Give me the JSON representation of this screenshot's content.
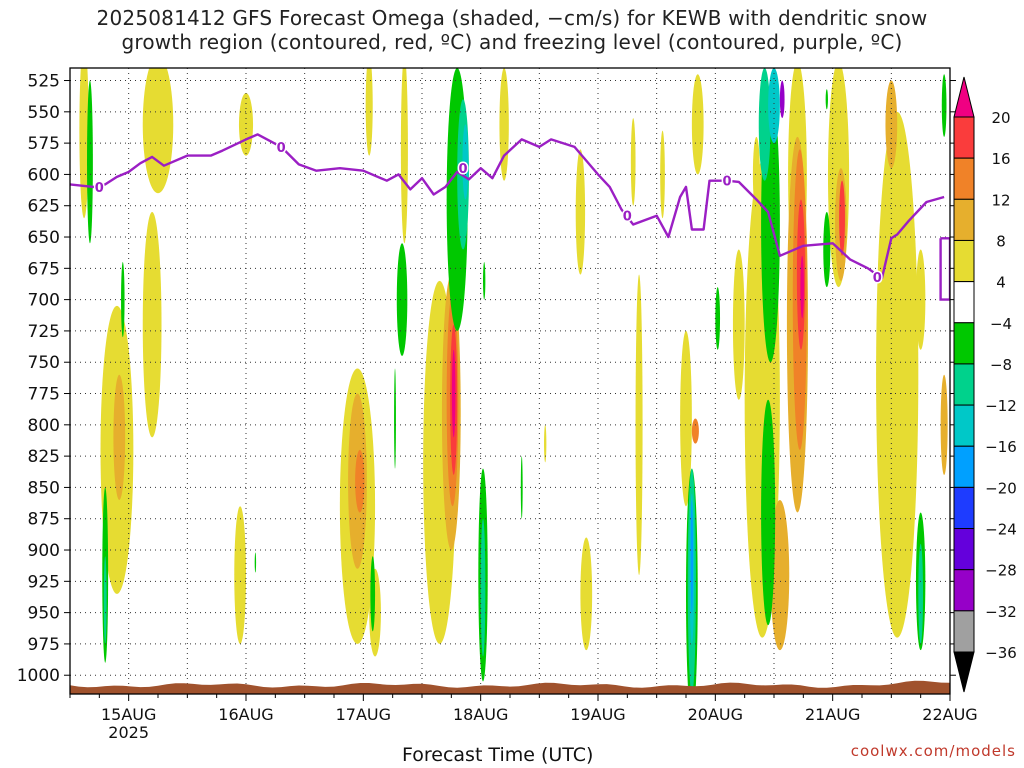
{
  "title": {
    "line1": "2025081412 GFS Forecast Omega (shaded, −cm/s) for KEWB with dendritic snow",
    "line2": "growth region (contoured, red, ºC) and freezing level (contoured, purple, ºC)"
  },
  "credit": "coolwx.com/models",
  "chart_data": {
    "type": "heatmap",
    "xlabel": "Forecast Time (UTC)",
    "ylabel": "",
    "x_ticks": [
      {
        "day": 15,
        "label": "15AUG",
        "sub": "2025"
      },
      {
        "day": 16,
        "label": "16AUG",
        "sub": ""
      },
      {
        "day": 17,
        "label": "17AUG",
        "sub": ""
      },
      {
        "day": 18,
        "label": "18AUG",
        "sub": ""
      },
      {
        "day": 19,
        "label": "19AUG",
        "sub": ""
      },
      {
        "day": 20,
        "label": "20AUG",
        "sub": ""
      },
      {
        "day": 21,
        "label": "21AUG",
        "sub": ""
      },
      {
        "day": 22,
        "label": "22AUG",
        "sub": ""
      }
    ],
    "xlim": [
      14.5,
      22.0
    ],
    "y_ticks": [
      525,
      550,
      575,
      600,
      625,
      650,
      675,
      700,
      725,
      750,
      775,
      800,
      825,
      850,
      875,
      900,
      925,
      950,
      975,
      1000
    ],
    "ylim": [
      515,
      1015
    ],
    "grid": true,
    "ground_level_hpa": 1008,
    "colorbar": {
      "levels": [
        -36,
        -32,
        -28,
        -24,
        -20,
        -16,
        -12,
        -8,
        -4,
        4,
        8,
        12,
        16,
        20
      ],
      "labels": [
        "20",
        "16",
        "12",
        "8",
        "4",
        "−4",
        "−8",
        "−12",
        "−16",
        "−20",
        "−24",
        "−28",
        "−32",
        "−36"
      ],
      "colors": [
        "#000000",
        "#a0a0a0",
        "#9600c8",
        "#6400dc",
        "#1e3cff",
        "#00a0ff",
        "#00c8c8",
        "#00d28c",
        "#00c800",
        "#ffffff",
        "#e6dc32",
        "#e6af2d",
        "#f08228",
        "#fa3c3c",
        "#f00082"
      ]
    },
    "freezing_level": {
      "label": "0",
      "points": [
        [
          14.5,
          608
        ],
        [
          14.7,
          610
        ],
        [
          14.8,
          608
        ],
        [
          14.9,
          602
        ],
        [
          15.0,
          598
        ],
        [
          15.1,
          591
        ],
        [
          15.2,
          586
        ],
        [
          15.3,
          593
        ],
        [
          15.5,
          585
        ],
        [
          15.7,
          585
        ],
        [
          15.8,
          581
        ],
        [
          16.0,
          572
        ],
        [
          16.1,
          568
        ],
        [
          16.3,
          578
        ],
        [
          16.45,
          592
        ],
        [
          16.6,
          597
        ],
        [
          16.8,
          595
        ],
        [
          17.0,
          597
        ],
        [
          17.2,
          605
        ],
        [
          17.3,
          600
        ],
        [
          17.4,
          612
        ],
        [
          17.5,
          603
        ],
        [
          17.6,
          616
        ],
        [
          17.7,
          610
        ],
        [
          17.8,
          598
        ],
        [
          17.9,
          604
        ],
        [
          18.0,
          595
        ],
        [
          18.1,
          603
        ],
        [
          18.2,
          585
        ],
        [
          18.35,
          572
        ],
        [
          18.5,
          578
        ],
        [
          18.6,
          572
        ],
        [
          18.8,
          578
        ],
        [
          19.0,
          600
        ],
        [
          19.1,
          610
        ],
        [
          19.2,
          628
        ],
        [
          19.3,
          640
        ],
        [
          19.5,
          633
        ],
        [
          19.6,
          650
        ],
        [
          19.7,
          618
        ],
        [
          19.75,
          610
        ],
        [
          19.8,
          644
        ],
        [
          19.9,
          644
        ],
        [
          19.95,
          605
        ],
        [
          20.1,
          605
        ],
        [
          20.2,
          606
        ],
        [
          20.35,
          620
        ],
        [
          20.45,
          630
        ],
        [
          20.55,
          665
        ],
        [
          20.75,
          657
        ],
        [
          21.0,
          655
        ],
        [
          21.15,
          668
        ],
        [
          21.3,
          675
        ],
        [
          21.42,
          683
        ],
        [
          21.5,
          651
        ],
        [
          21.55,
          648
        ],
        [
          21.65,
          637
        ],
        [
          21.8,
          622
        ],
        [
          21.95,
          618
        ]
      ],
      "tail": [
        [
          21.92,
          651
        ],
        [
          22.0,
          651
        ],
        [
          22.0,
          700
        ],
        [
          21.92,
          700
        ],
        [
          21.92,
          651
        ]
      ]
    },
    "omega_blobs": [
      {
        "level": 4,
        "x": 14.62,
        "y": 565,
        "rx": 0.04,
        "ry": 70
      },
      {
        "level": 4,
        "x": 15.25,
        "y": 560,
        "rx": 0.13,
        "ry": 55
      },
      {
        "level": 4,
        "x": 15.2,
        "y": 720,
        "rx": 0.08,
        "ry": 90
      },
      {
        "level": 4,
        "x": 14.9,
        "y": 820,
        "rx": 0.14,
        "ry": 115
      },
      {
        "level": 8,
        "x": 14.92,
        "y": 810,
        "rx": 0.05,
        "ry": 50
      },
      {
        "level": 4,
        "x": 15.95,
        "y": 920,
        "rx": 0.05,
        "ry": 55
      },
      {
        "level": 4,
        "x": 16.0,
        "y": 560,
        "rx": 0.06,
        "ry": 25
      },
      {
        "level": 4,
        "x": 17.05,
        "y": 545,
        "rx": 0.03,
        "ry": 40
      },
      {
        "level": 4,
        "x": 17.35,
        "y": 580,
        "rx": 0.03,
        "ry": 75
      },
      {
        "level": 4,
        "x": 16.95,
        "y": 865,
        "rx": 0.15,
        "ry": 110
      },
      {
        "level": 8,
        "x": 16.95,
        "y": 845,
        "rx": 0.08,
        "ry": 70
      },
      {
        "level": 12,
        "x": 16.97,
        "y": 845,
        "rx": 0.04,
        "ry": 25
      },
      {
        "level": 4,
        "x": 17.1,
        "y": 950,
        "rx": 0.05,
        "ry": 35
      },
      {
        "level": 4,
        "x": 17.65,
        "y": 830,
        "rx": 0.14,
        "ry": 145
      },
      {
        "level": 8,
        "x": 17.75,
        "y": 790,
        "rx": 0.08,
        "ry": 110
      },
      {
        "level": 12,
        "x": 17.76,
        "y": 780,
        "rx": 0.05,
        "ry": 85
      },
      {
        "level": 16,
        "x": 17.77,
        "y": 780,
        "rx": 0.03,
        "ry": 60
      },
      {
        "level": 20,
        "x": 17.77,
        "y": 775,
        "rx": 0.015,
        "ry": 35
      },
      {
        "level": 4,
        "x": 18.2,
        "y": 560,
        "rx": 0.04,
        "ry": 45
      },
      {
        "level": 4,
        "x": 18.55,
        "y": 815,
        "rx": 0.01,
        "ry": 15
      },
      {
        "level": 4,
        "x": 18.85,
        "y": 630,
        "rx": 0.04,
        "ry": 50
      },
      {
        "level": 4,
        "x": 18.9,
        "y": 935,
        "rx": 0.05,
        "ry": 45
      },
      {
        "level": 4,
        "x": 19.35,
        "y": 800,
        "rx": 0.03,
        "ry": 120
      },
      {
        "level": 4,
        "x": 19.3,
        "y": 590,
        "rx": 0.02,
        "ry": 35
      },
      {
        "level": 4,
        "x": 19.55,
        "y": 600,
        "rx": 0.02,
        "ry": 35
      },
      {
        "level": 4,
        "x": 19.75,
        "y": 795,
        "rx": 0.05,
        "ry": 70
      },
      {
        "level": 4,
        "x": 19.85,
        "y": 560,
        "rx": 0.05,
        "ry": 40
      },
      {
        "level": 12,
        "x": 19.83,
        "y": 805,
        "rx": 0.03,
        "ry": 10
      },
      {
        "level": 4,
        "x": 20.2,
        "y": 720,
        "rx": 0.05,
        "ry": 60
      },
      {
        "level": 4,
        "x": 20.4,
        "y": 780,
        "rx": 0.15,
        "ry": 190
      },
      {
        "level": 4,
        "x": 20.7,
        "y": 600,
        "rx": 0.08,
        "ry": 90
      },
      {
        "level": 8,
        "x": 20.7,
        "y": 720,
        "rx": 0.09,
        "ry": 150
      },
      {
        "level": 8,
        "x": 20.55,
        "y": 920,
        "rx": 0.08,
        "ry": 60
      },
      {
        "level": 12,
        "x": 20.72,
        "y": 700,
        "rx": 0.06,
        "ry": 120
      },
      {
        "level": 16,
        "x": 20.73,
        "y": 680,
        "rx": 0.035,
        "ry": 60
      },
      {
        "level": 20,
        "x": 20.74,
        "y": 690,
        "rx": 0.015,
        "ry": 25
      },
      {
        "level": 4,
        "x": 21.05,
        "y": 600,
        "rx": 0.09,
        "ry": 90
      },
      {
        "level": 8,
        "x": 21.07,
        "y": 640,
        "rx": 0.05,
        "ry": 45
      },
      {
        "level": 16,
        "x": 21.08,
        "y": 635,
        "rx": 0.025,
        "ry": 30
      },
      {
        "level": 4,
        "x": 21.55,
        "y": 760,
        "rx": 0.18,
        "ry": 210
      },
      {
        "level": 8,
        "x": 21.5,
        "y": 560,
        "rx": 0.05,
        "ry": 35
      },
      {
        "level": 8,
        "x": 21.95,
        "y": 800,
        "rx": 0.03,
        "ry": 40
      },
      {
        "level": 4,
        "x": 21.75,
        "y": 700,
        "rx": 0.04,
        "ry": 40
      },
      {
        "level": 4,
        "x": 20.35,
        "y": 600,
        "rx": 0.03,
        "ry": 30
      },
      {
        "level": -4,
        "x": 14.67,
        "y": 590,
        "rx": 0.025,
        "ry": 65
      },
      {
        "level": -4,
        "x": 14.95,
        "y": 700,
        "rx": 0.015,
        "ry": 30
      },
      {
        "level": -4,
        "x": 14.8,
        "y": 920,
        "rx": 0.025,
        "ry": 70
      },
      {
        "level": -8,
        "x": 14.8,
        "y": 940,
        "rx": 0.012,
        "ry": 35
      },
      {
        "level": -4,
        "x": 16.08,
        "y": 910,
        "rx": 0.006,
        "ry": 8
      },
      {
        "level": -4,
        "x": 17.08,
        "y": 935,
        "rx": 0.02,
        "ry": 30
      },
      {
        "level": -4,
        "x": 17.33,
        "y": 700,
        "rx": 0.045,
        "ry": 45
      },
      {
        "level": -4,
        "x": 17.8,
        "y": 620,
        "rx": 0.09,
        "ry": 105
      },
      {
        "level": -8,
        "x": 17.85,
        "y": 600,
        "rx": 0.05,
        "ry": 60
      },
      {
        "level": -12,
        "x": 17.87,
        "y": 590,
        "rx": 0.025,
        "ry": 30
      },
      {
        "level": -4,
        "x": 18.02,
        "y": 920,
        "rx": 0.04,
        "ry": 85
      },
      {
        "level": -8,
        "x": 18.02,
        "y": 930,
        "rx": 0.02,
        "ry": 55
      },
      {
        "level": -4,
        "x": 18.03,
        "y": 685,
        "rx": 0.01,
        "ry": 15
      },
      {
        "level": -4,
        "x": 17.27,
        "y": 795,
        "rx": 0.008,
        "ry": 40
      },
      {
        "level": -4,
        "x": 18.35,
        "y": 850,
        "rx": 0.008,
        "ry": 25
      },
      {
        "level": -4,
        "x": 19.8,
        "y": 935,
        "rx": 0.05,
        "ry": 100
      },
      {
        "level": -8,
        "x": 19.8,
        "y": 925,
        "rx": 0.035,
        "ry": 90
      },
      {
        "level": -12,
        "x": 19.8,
        "y": 915,
        "rx": 0.02,
        "ry": 60
      },
      {
        "level": -16,
        "x": 19.8,
        "y": 905,
        "rx": 0.01,
        "ry": 45
      },
      {
        "level": -4,
        "x": 20.02,
        "y": 715,
        "rx": 0.02,
        "ry": 25
      },
      {
        "level": -4,
        "x": 20.47,
        "y": 640,
        "rx": 0.08,
        "ry": 110
      },
      {
        "level": -8,
        "x": 20.42,
        "y": 560,
        "rx": 0.05,
        "ry": 45
      },
      {
        "level": -12,
        "x": 20.5,
        "y": 545,
        "rx": 0.05,
        "ry": 30
      },
      {
        "level": -28,
        "x": 20.57,
        "y": 540,
        "rx": 0.02,
        "ry": 15
      },
      {
        "level": -4,
        "x": 20.45,
        "y": 870,
        "rx": 0.06,
        "ry": 90
      },
      {
        "level": -4,
        "x": 20.95,
        "y": 660,
        "rx": 0.03,
        "ry": 30
      },
      {
        "level": -4,
        "x": 20.95,
        "y": 540,
        "rx": 0.01,
        "ry": 8
      },
      {
        "level": -4,
        "x": 21.75,
        "y": 925,
        "rx": 0.04,
        "ry": 55
      },
      {
        "level": -8,
        "x": 21.75,
        "y": 935,
        "rx": 0.02,
        "ry": 40
      },
      {
        "level": -4,
        "x": 21.95,
        "y": 545,
        "rx": 0.02,
        "ry": 25
      }
    ]
  }
}
